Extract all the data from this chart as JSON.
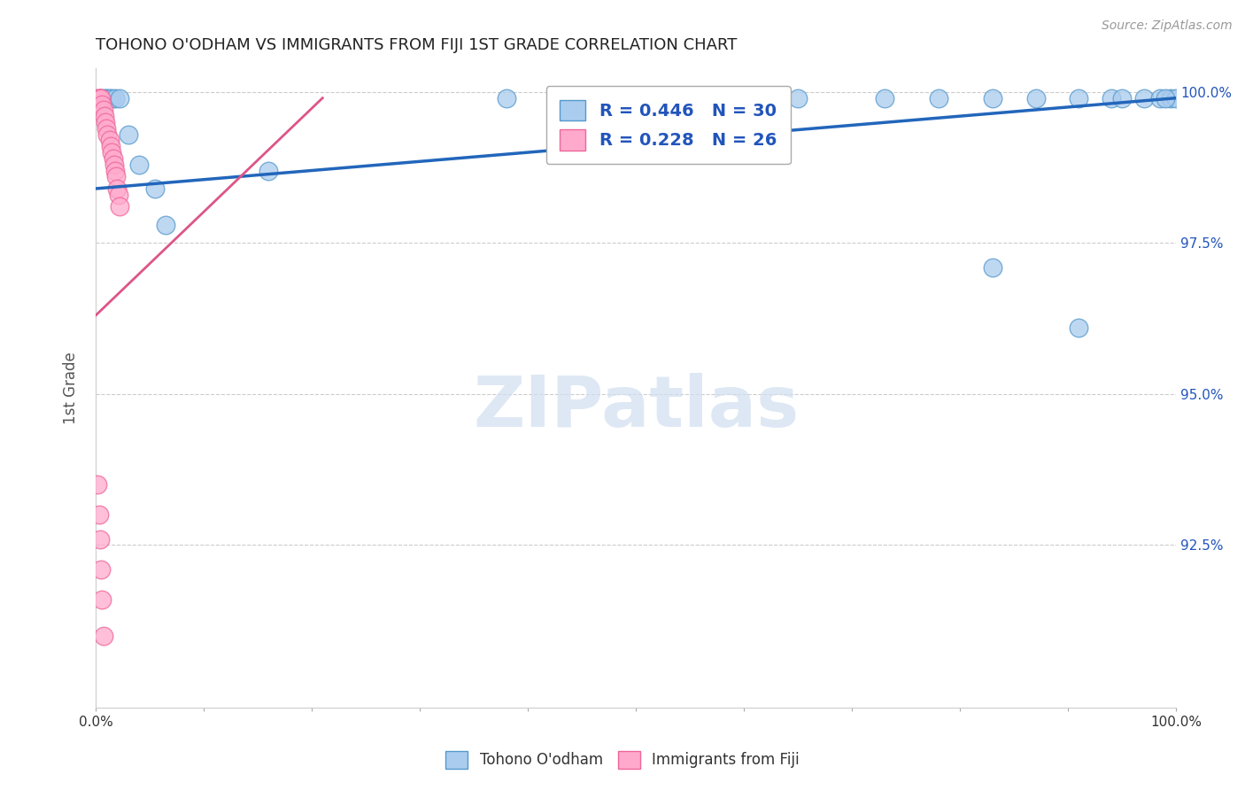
{
  "title": "TOHONO O'ODHAM VS IMMIGRANTS FROM FIJI 1ST GRADE CORRELATION CHART",
  "source": "Source: ZipAtlas.com",
  "ylabel": "1st Grade",
  "xlim": [
    0.0,
    1.0
  ],
  "ylim": [
    0.898,
    1.004
  ],
  "yticks": [
    0.925,
    0.95,
    0.975,
    1.0
  ],
  "ytick_labels": [
    "92.5%",
    "95.0%",
    "97.5%",
    "100.0%"
  ],
  "xticks": [
    0.0,
    0.1,
    0.2,
    0.3,
    0.4,
    0.5,
    0.6,
    0.7,
    0.8,
    0.9,
    1.0
  ],
  "xtick_labels": [
    "0.0%",
    "",
    "",
    "",
    "",
    "",
    "",
    "",
    "",
    "",
    "100.0%"
  ],
  "blue_scatter_x": [
    0.002,
    0.005,
    0.008,
    0.01,
    0.012,
    0.015,
    0.018,
    0.022,
    0.03,
    0.04,
    0.055,
    0.065,
    0.16,
    0.38,
    0.52,
    0.65,
    0.73,
    0.78,
    0.83,
    0.87,
    0.91,
    0.94,
    0.97,
    0.985,
    0.995,
    1.0,
    0.83,
    0.91,
    0.95,
    0.99
  ],
  "blue_scatter_y": [
    0.998,
    0.999,
    0.999,
    0.999,
    0.999,
    0.999,
    0.999,
    0.999,
    0.993,
    0.988,
    0.984,
    0.978,
    0.987,
    0.999,
    0.999,
    0.999,
    0.999,
    0.999,
    0.999,
    0.999,
    0.999,
    0.999,
    0.999,
    0.999,
    0.999,
    0.999,
    0.971,
    0.961,
    0.999,
    0.999
  ],
  "pink_scatter_x": [
    0.002,
    0.003,
    0.004,
    0.005,
    0.006,
    0.007,
    0.008,
    0.009,
    0.01,
    0.011,
    0.013,
    0.014,
    0.015,
    0.016,
    0.017,
    0.018,
    0.019,
    0.02,
    0.021,
    0.022,
    0.002,
    0.003,
    0.004,
    0.005,
    0.006,
    0.007
  ],
  "pink_scatter_y": [
    0.999,
    0.999,
    0.999,
    0.999,
    0.998,
    0.997,
    0.996,
    0.995,
    0.994,
    0.993,
    0.992,
    0.991,
    0.99,
    0.989,
    0.988,
    0.987,
    0.986,
    0.984,
    0.983,
    0.981,
    0.935,
    0.93,
    0.926,
    0.921,
    0.916,
    0.91
  ],
  "blue_line_x": [
    0.0,
    1.0
  ],
  "blue_line_y": [
    0.984,
    0.999
  ],
  "pink_line_x": [
    0.0,
    0.21
  ],
  "pink_line_y": [
    0.963,
    0.999
  ],
  "legend_blue_label": "R = 0.446   N = 30",
  "legend_pink_label": "R = 0.228   N = 26",
  "blue_color": "#aaccee",
  "blue_edge_color": "#5599cc",
  "pink_color": "#ffaacc",
  "pink_edge_color": "#ee6699",
  "blue_line_color": "#2266bb",
  "pink_line_color": "#dd5588",
  "legend_text_color": "#2255bb",
  "title_color": "#222222",
  "watermark_color": "#d0dff0",
  "grid_color": "#cccccc",
  "background_color": "#ffffff",
  "ylabel_color": "#555555",
  "right_tick_color": "#2255bb",
  "bottom_legend_blue": "Tohono O'odham",
  "bottom_legend_pink": "Immigrants from Fiji"
}
